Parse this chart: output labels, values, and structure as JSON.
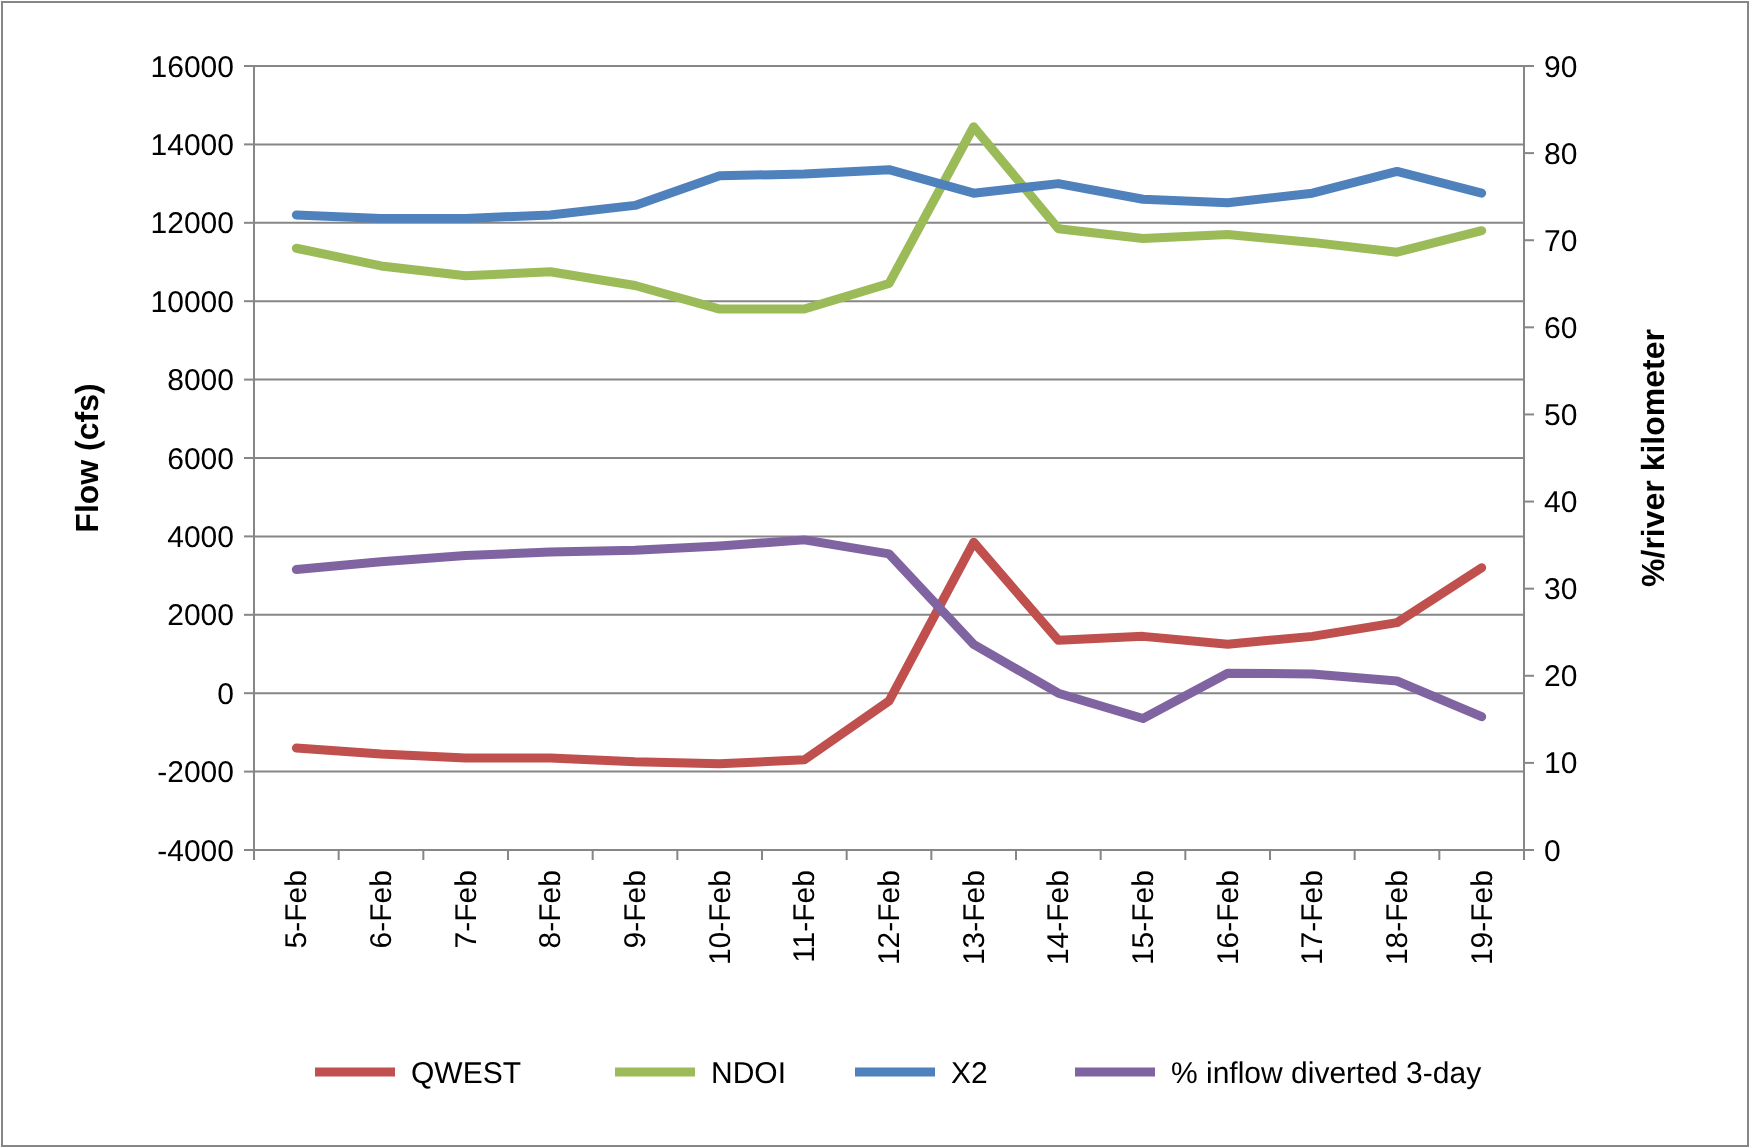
{
  "chart_data": {
    "type": "line",
    "ylabel": "Flow (cfs)",
    "y2label": "%/river kilometer",
    "categories": [
      "5-Feb",
      "6-Feb",
      "7-Feb",
      "8-Feb",
      "9-Feb",
      "10-Feb",
      "11-Feb",
      "12-Feb",
      "13-Feb",
      "14-Feb",
      "15-Feb",
      "16-Feb",
      "17-Feb",
      "18-Feb",
      "19-Feb"
    ],
    "series": [
      {
        "name": "QWEST",
        "color": "#c0504d",
        "values": [
          -1400,
          -1550,
          -1650,
          -1650,
          -1750,
          -1800,
          -1700,
          -200,
          3850,
          1350,
          1450,
          1250,
          1450,
          1800,
          3200
        ]
      },
      {
        "name": "NDOI",
        "color": "#9bbb59",
        "values": [
          11350,
          10900,
          10650,
          10750,
          10400,
          9800,
          9800,
          10450,
          14450,
          11850,
          11600,
          11700,
          11500,
          11250,
          11800
        ]
      },
      {
        "name": "X2",
        "color": "#4f81bd",
        "axis": "y2",
        "values": [
          72.9,
          72.5,
          72.5,
          72.9,
          74.0,
          77.4,
          77.6,
          78.1,
          75.4,
          76.5,
          74.7,
          74.3,
          75.4,
          77.9,
          75.4
        ]
      },
      {
        "name": "% inflow diverted 3-day",
        "color": "#8064a2",
        "axis": "y2",
        "values": [
          32.2,
          33.1,
          33.8,
          34.2,
          34.4,
          34.9,
          35.6,
          34.0,
          23.6,
          18.0,
          15.1,
          20.3,
          20.2,
          19.4,
          15.3
        ]
      }
    ],
    "ylim": [
      -4000,
      16000
    ],
    "yticks": [
      -4000,
      -2000,
      0,
      2000,
      4000,
      6000,
      8000,
      10000,
      12000,
      14000,
      16000
    ],
    "y2lim": [
      0,
      90
    ],
    "y2ticks": [
      0,
      10,
      20,
      30,
      40,
      50,
      60,
      70,
      80,
      90
    ],
    "grid": "y",
    "legend": "bottom",
    "marker": "none",
    "line_style": "solid"
  }
}
